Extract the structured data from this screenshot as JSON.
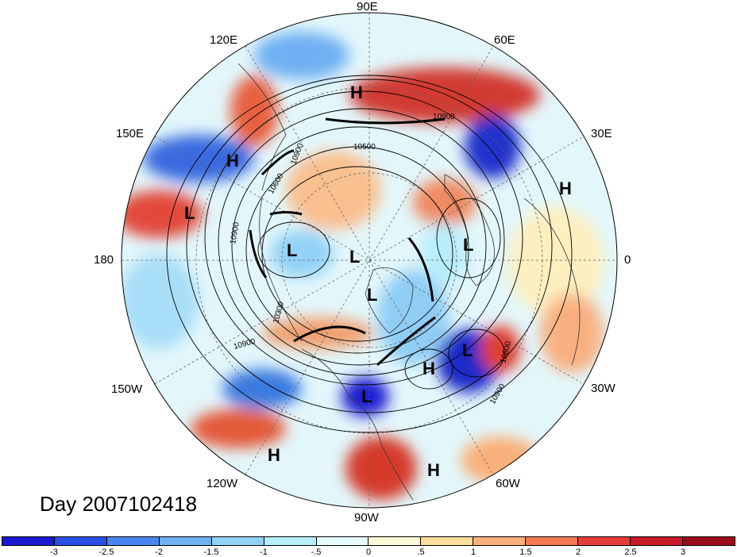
{
  "day_label": "Day 2007102418",
  "longitude_labels": {
    "lon_90e": "90E",
    "lon_60e": "60E",
    "lon_30e": "30E",
    "lon_0": "0",
    "lon_30w": "30W",
    "lon_60w": "60W",
    "lon_90w": "90W",
    "lon_120w": "120W",
    "lon_150w": "150W",
    "lon_180": "180",
    "lon_150e": "150E",
    "lon_120e": "120E"
  },
  "pressure_systems": [
    {
      "id": "h-east-siberia",
      "letter": "H"
    },
    {
      "id": "h-west-pacific",
      "letter": "H"
    },
    {
      "id": "l-north-pacific",
      "letter": "L"
    },
    {
      "id": "l-alaska",
      "letter": "L"
    },
    {
      "id": "l-arctic",
      "letter": "L"
    },
    {
      "id": "l-canada",
      "letter": "L"
    },
    {
      "id": "l-scandinavia",
      "letter": "L"
    },
    {
      "id": "h-africa",
      "letter": "H"
    },
    {
      "id": "l-north-atlantic",
      "letter": "L"
    },
    {
      "id": "h-mid-atlantic",
      "letter": "H"
    },
    {
      "id": "l-gulf",
      "letter": "L"
    },
    {
      "id": "h-east-pacific",
      "letter": "H"
    },
    {
      "id": "h-caribbean",
      "letter": "H"
    }
  ],
  "contour_labels": [
    {
      "id": "c-10900-siberia",
      "text": "10900"
    },
    {
      "id": "c-10500",
      "text": "10500"
    },
    {
      "id": "c-10900-pacific",
      "text": "10900"
    },
    {
      "id": "c-10600",
      "text": "10600"
    },
    {
      "id": "c-10300",
      "text": "10300"
    },
    {
      "id": "c-10900-sw",
      "text": "10900"
    },
    {
      "id": "c-10800-atl",
      "text": "10800"
    },
    {
      "id": "c-10900-atl",
      "text": "10900"
    },
    {
      "id": "c-10900-ne",
      "text": "10900"
    }
  ],
  "colorbar": {
    "ticks": [
      "-3",
      "-2.5",
      "-2",
      "-1.5",
      "-1",
      "-.5",
      "0",
      ".5",
      "1",
      "1.5",
      "2",
      "2.5",
      "3"
    ],
    "colors": [
      "#1a1ad0",
      "#2a4fe6",
      "#4b86f0",
      "#6fb0f2",
      "#92d2f6",
      "#b8eefa",
      "#e6fbfd",
      "#fffbd8",
      "#fddf9d",
      "#f9b07a",
      "#f27a55",
      "#e23d3a",
      "#c81a26",
      "#9c0d1c"
    ]
  }
}
